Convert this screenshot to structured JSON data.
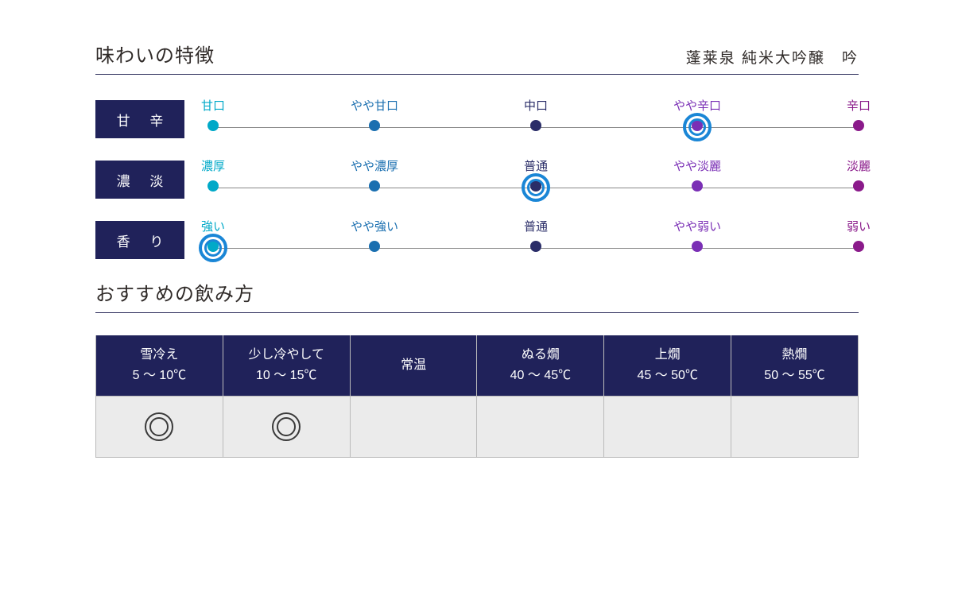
{
  "section1_title": "味わいの特徴",
  "product_name": "蓬莱泉 純米大吟醸　吟",
  "flavor_colors": [
    "#00a9c8",
    "#1a6fb0",
    "#2a2d68",
    "#7a2fb5",
    "#8a1a8a"
  ],
  "flavor_rows": [
    {
      "label": "甘 辛",
      "points": [
        "甘口",
        "やや甘口",
        "中口",
        "やや辛口",
        "辛口"
      ],
      "selected": 3
    },
    {
      "label": "濃 淡",
      "points": [
        "濃厚",
        "やや濃厚",
        "普通",
        "やや淡麗",
        "淡麗"
      ],
      "selected": 2
    },
    {
      "label": "香 り",
      "points": [
        "強い",
        "やや強い",
        "普通",
        "やや弱い",
        "弱い"
      ],
      "selected": 0
    }
  ],
  "section2_title": "おすすめの飲み方",
  "temp_columns": [
    {
      "name": "雪冷え",
      "range": "5 〜 10℃",
      "recommended": true
    },
    {
      "name": "少し冷やして",
      "range": "10 〜 15℃",
      "recommended": true
    },
    {
      "name": "常温",
      "range": "",
      "recommended": false
    },
    {
      "name": "ぬる燗",
      "range": "40 〜 45℃",
      "recommended": false
    },
    {
      "name": "上燗",
      "range": "45 〜 50℃",
      "recommended": false
    },
    {
      "name": "熱燗",
      "range": "50 〜 55℃",
      "recommended": false
    }
  ],
  "ring_color": "#1a86d6",
  "label_bg": "#20225a"
}
